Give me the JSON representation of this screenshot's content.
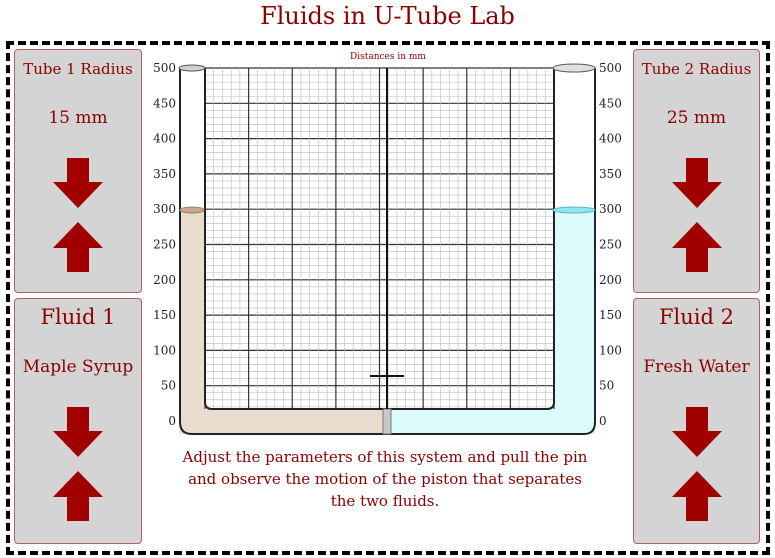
{
  "title": "Fluids in U-Tube Lab",
  "left": {
    "tube_label": "Tube 1 Radius",
    "tube_value": "15 mm",
    "fluid_label": "Fluid 1",
    "fluid_value": "Maple Syrup"
  },
  "right": {
    "tube_label": "Tube 2 Radius",
    "tube_value": "25 mm",
    "fluid_label": "Fluid 2",
    "fluid_value": "Fresh Water"
  },
  "diagram": {
    "header": "Distances in mm",
    "scale_labels": [
      "500",
      "450",
      "400",
      "350",
      "300",
      "250",
      "200",
      "150",
      "100",
      "50",
      "0"
    ],
    "tube1_level_mm": 300,
    "tube2_level_mm": 300,
    "fluid1_color": "#e8dccf",
    "fluid2_color": "#dcfbfd"
  },
  "caption": "Adjust the parameters of this system and pull the pin and observe the motion of the piston that separates the two fluids.",
  "colors": {
    "accent": "#8b0000",
    "arrow": "#a00000",
    "panel": "#d4d4d4"
  }
}
